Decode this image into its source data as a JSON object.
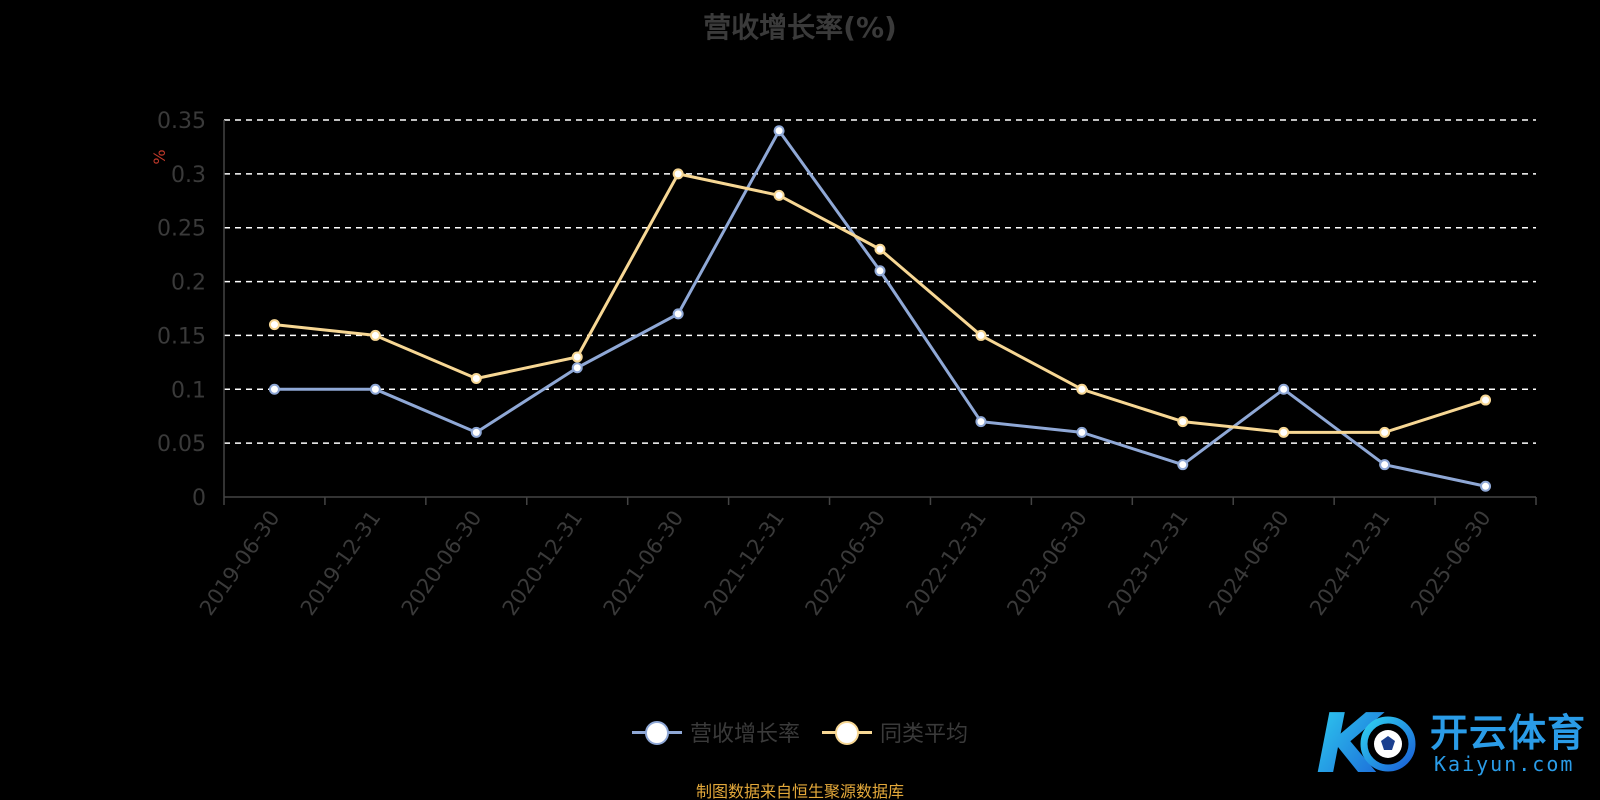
{
  "chart_data": {
    "type": "line",
    "title": "营收增长率(%)",
    "ylabel": "%",
    "xlabel": "",
    "categories": [
      "2019-06-30",
      "2019-12-31",
      "2020-06-30",
      "2020-12-31",
      "2021-06-30",
      "2021-12-31",
      "2022-06-30",
      "2022-12-31",
      "2023-06-30",
      "2023-12-31",
      "2024-06-30",
      "2024-12-31",
      "2025-06-30"
    ],
    "yticks": [
      "0",
      "0.05",
      "0.1",
      "0.15",
      "0.2",
      "0.25",
      "0.3",
      "0.35"
    ],
    "ylim": [
      0,
      0.35
    ],
    "grid": true,
    "legend_position": "bottom",
    "series": [
      {
        "name": "营收增长率",
        "color": "#8fa8d6",
        "values": [
          0.1,
          0.1,
          0.06,
          0.12,
          0.17,
          0.34,
          0.21,
          0.07,
          0.06,
          0.03,
          0.1,
          0.03,
          0.01
        ]
      },
      {
        "name": "同类平均",
        "color": "#f7d794",
        "values": [
          0.16,
          0.15,
          0.11,
          0.13,
          0.3,
          0.28,
          0.23,
          0.15,
          0.1,
          0.07,
          0.06,
          0.06,
          0.09
        ]
      }
    ]
  },
  "source_note": "制图数据来自恒生聚源数据库",
  "watermark": {
    "brand_cn": "开云体育",
    "brand_en": "Kaiyun.com",
    "logo_letter": "K"
  },
  "colors": {
    "background": "#000000",
    "title": "#3a3a3a",
    "axis_text": "#3a3a3a",
    "ylabel": "#c0392b",
    "grid": "#ffffff",
    "source": "#e3a83a",
    "watermark": "#2a9ce8"
  }
}
